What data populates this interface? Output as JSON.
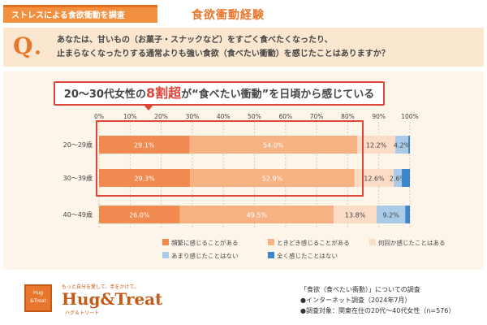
{
  "header": {
    "tag": "ストレスによる食欲衝動を調査",
    "title": "食欲衝動経験"
  },
  "question": {
    "mark": "Q",
    "line1": "あなたは、甘いもの（お菓子・スナックなど）をすごく食べたくなったり、",
    "line2": "止まらなくなったりする通常よりも強い食欲（食べたい衝動）を感じたことはありますか？"
  },
  "headline": {
    "before": "20～30代女性の",
    "emphasis": "8割超",
    "after": "が“食べたい衝動”を日頃から感じている"
  },
  "chart_data": {
    "type": "bar",
    "orientation": "horizontal",
    "stacked": true,
    "categories": [
      "20～29歳",
      "30～39歳",
      "40～49歳"
    ],
    "x_ticks": [
      "0%",
      "10%",
      "20%",
      "30%",
      "40%",
      "50%",
      "60%",
      "70%",
      "80%",
      "90%",
      "100%"
    ],
    "xlim": [
      0,
      100
    ],
    "grid": true,
    "legend_position": "bottom",
    "series": [
      {
        "name": "頻繁に感じることがある",
        "color": "#f08a50",
        "values": [
          29.1,
          29.3,
          26.0
        ],
        "labels": [
          "29.1%",
          "29.3%",
          "26.0%"
        ]
      },
      {
        "name": "ときどき感じることがある",
        "color": "#f6b283",
        "values": [
          54.0,
          52.9,
          49.5
        ],
        "labels": [
          "54.0%",
          "52.9%",
          "49.5%"
        ]
      },
      {
        "name": "何回か感じたことはある",
        "color": "#fbdcc6",
        "values": [
          12.2,
          12.6,
          13.8
        ],
        "labels": [
          "12.2%",
          "12.6%",
          "13.8%"
        ]
      },
      {
        "name": "あまり感じたことはない",
        "color": "#a9cbe8",
        "values": [
          4.2,
          2.6,
          9.2
        ],
        "labels": [
          "4.2%",
          "2.6%",
          "9.2%"
        ]
      },
      {
        "name": "全く感じたことはない",
        "color": "#3a86c8",
        "values": [
          0.5,
          2.6,
          1.5
        ],
        "labels": [
          "",
          "",
          ""
        ]
      }
    ]
  },
  "logo": {
    "tagline": "もっと自分を愛して、手をかけて。",
    "name": "Hug&Treat",
    "sub": "ハグ＆トリート",
    "mark_line1": "Hug",
    "mark_line2": "&Treat"
  },
  "footer": {
    "survey_title": "「食欲（食べたい衝動）」についての調査",
    "method": "●インターネット調査（2024年7月）",
    "target": "●調査対象：関東在住の20代～40代女性（n=576）"
  }
}
